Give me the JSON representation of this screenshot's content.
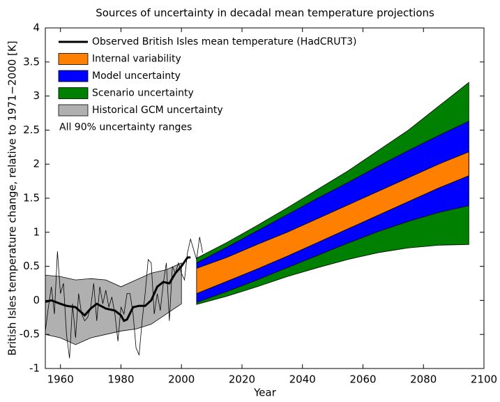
{
  "chart_data": {
    "type": "line",
    "title": "Sources of uncertainty in decadal mean temperature projections",
    "xlabel": "Year",
    "ylabel": "British Isles temperature change, relative to 1971−2000  [K]",
    "annotation": "All 90% uncertainty ranges",
    "xlim": [
      1955,
      2100
    ],
    "xticks": [
      1960,
      1980,
      2000,
      2020,
      2040,
      2060,
      2080,
      2100
    ],
    "ylim": [
      -1,
      4
    ],
    "yticks": [
      -1,
      -0.5,
      0,
      0.5,
      1,
      1.5,
      2,
      2.5,
      3,
      3.5,
      4
    ],
    "series": [
      {
        "name": "Observed British Isles mean temperature (HadCRUT3)",
        "color": "#000000",
        "type": "line",
        "x": [
          1955,
          1957,
          1960,
          1962,
          1965,
          1967,
          1968,
          1970,
          1972,
          1975,
          1978,
          1980,
          1981,
          1982,
          1984,
          1986,
          1988,
          1990,
          1992,
          1994,
          1996,
          1998,
          2000,
          2002,
          2003
        ],
        "values": [
          -0.02,
          0.0,
          -0.05,
          -0.08,
          -0.1,
          -0.18,
          -0.22,
          -0.12,
          -0.05,
          -0.12,
          -0.15,
          -0.22,
          -0.3,
          -0.28,
          -0.1,
          -0.08,
          -0.08,
          0.0,
          0.2,
          0.27,
          0.25,
          0.4,
          0.5,
          0.63,
          0.63
        ],
        "annual_x": [
          1955,
          1956,
          1957,
          1958,
          1959,
          1960,
          1961,
          1962,
          1963,
          1964,
          1965,
          1966,
          1967,
          1968,
          1969,
          1970,
          1971,
          1972,
          1973,
          1974,
          1975,
          1976,
          1977,
          1978,
          1979,
          1980,
          1981,
          1982,
          1983,
          1984,
          1985,
          1986,
          1987,
          1988,
          1989,
          1990,
          1991,
          1992,
          1993,
          1994,
          1995,
          1996,
          1997,
          1998,
          1999,
          2000,
          2001,
          2002,
          2003,
          2004,
          2005,
          2006,
          2007
        ],
        "annual_values": [
          -0.45,
          -0.1,
          0.2,
          -0.2,
          0.72,
          0.1,
          0.25,
          -0.5,
          -0.85,
          -0.05,
          -0.55,
          0.1,
          -0.2,
          -0.3,
          -0.25,
          -0.1,
          0.25,
          -0.3,
          0.2,
          -0.05,
          0.15,
          -0.1,
          0.05,
          -0.2,
          -0.6,
          -0.1,
          -0.2,
          0.1,
          0.1,
          -0.2,
          -0.7,
          -0.8,
          -0.3,
          0.1,
          0.6,
          0.55,
          -0.2,
          0.1,
          -0.15,
          0.25,
          0.55,
          -0.3,
          0.5,
          0.4,
          0.55,
          0.4,
          0.3,
          0.7,
          0.9,
          0.75,
          0.6,
          0.93,
          0.7
        ]
      },
      {
        "name": "Internal variability",
        "color": "#ff8000",
        "type": "band",
        "x": [
          2005,
          2015,
          2025,
          2035,
          2045,
          2055,
          2065,
          2075,
          2085,
          2095
        ],
        "lower": [
          0.1,
          0.28,
          0.46,
          0.65,
          0.85,
          1.05,
          1.25,
          1.45,
          1.65,
          1.83
        ],
        "upper": [
          0.47,
          0.63,
          0.82,
          1.0,
          1.2,
          1.4,
          1.6,
          1.8,
          2.0,
          2.18
        ]
      },
      {
        "name": "Model uncertainty",
        "color": "#0000ff",
        "type": "band",
        "x": [
          2005,
          2015,
          2025,
          2035,
          2045,
          2055,
          2065,
          2075,
          2085,
          2095
        ],
        "lower": [
          -0.03,
          0.13,
          0.3,
          0.48,
          0.66,
          0.84,
          1.01,
          1.16,
          1.29,
          1.39
        ],
        "upper": [
          0.55,
          0.78,
          1.02,
          1.26,
          1.5,
          1.73,
          1.97,
          2.2,
          2.42,
          2.63
        ]
      },
      {
        "name": "Scenario uncertainty",
        "color": "#008000",
        "type": "band",
        "x": [
          2005,
          2015,
          2025,
          2035,
          2045,
          2055,
          2065,
          2075,
          2085,
          2095
        ],
        "lower": [
          -0.06,
          0.06,
          0.2,
          0.35,
          0.48,
          0.6,
          0.7,
          0.77,
          0.81,
          0.82
        ],
        "upper": [
          0.62,
          0.85,
          1.1,
          1.36,
          1.63,
          1.9,
          2.2,
          2.5,
          2.85,
          3.2
        ]
      },
      {
        "name": "Historical GCM uncertainty",
        "color": "#b0b0b0",
        "type": "band",
        "x": [
          1955,
          1960,
          1965,
          1970,
          1975,
          1980,
          1985,
          1990,
          1995,
          2000
        ],
        "lower": [
          -0.5,
          -0.55,
          -0.65,
          -0.55,
          -0.5,
          -0.45,
          -0.42,
          -0.35,
          -0.2,
          -0.05
        ],
        "upper": [
          0.37,
          0.35,
          0.3,
          0.32,
          0.3,
          0.2,
          0.3,
          0.4,
          0.45,
          0.55
        ]
      }
    ]
  }
}
